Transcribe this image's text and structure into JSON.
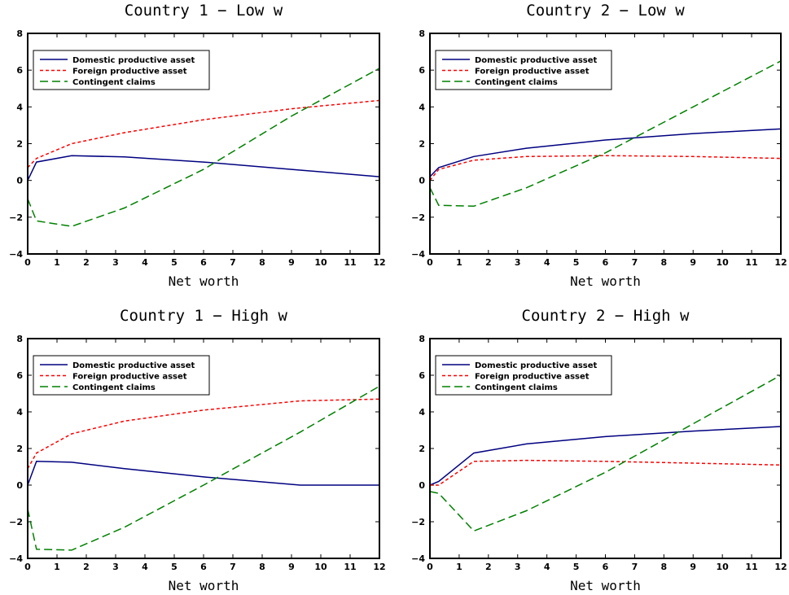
{
  "chart_data": [
    {
      "type": "line",
      "title": "Country 1 − Low w",
      "xlabel": "Net worth",
      "ylabel": "",
      "xlim": [
        0,
        12
      ],
      "ylim": [
        -4,
        8
      ],
      "xticks": [
        "0",
        "1",
        "2",
        "3",
        "4",
        "5",
        "6",
        "7",
        "8",
        "9",
        "10",
        "11",
        "12"
      ],
      "yticks": [
        "−4",
        "−2",
        "0",
        "2",
        "4",
        "6",
        "8"
      ],
      "legend_position": "top-left",
      "series": [
        {
          "name": "Domestic productive asset",
          "color": "#000080",
          "dash": "solid",
          "x": [
            0,
            0.3,
            1.5,
            3.3,
            6,
            9,
            12
          ],
          "y": [
            0,
            1.0,
            1.35,
            1.28,
            1.0,
            0.6,
            0.2
          ]
        },
        {
          "name": "Foreign productive asset",
          "color": "#ff0000",
          "dash": "short",
          "x": [
            0,
            0.3,
            1.5,
            3.3,
            6,
            9,
            12
          ],
          "y": [
            0.7,
            1.2,
            2.0,
            2.6,
            3.3,
            3.9,
            4.35
          ]
        },
        {
          "name": "Contingent claims",
          "color": "#008000",
          "dash": "long",
          "x": [
            0,
            0.3,
            1.5,
            3.3,
            6,
            9,
            12
          ],
          "y": [
            -1.0,
            -2.2,
            -2.5,
            -1.5,
            0.6,
            3.5,
            6.1
          ]
        }
      ]
    },
    {
      "type": "line",
      "title": "Country 2 − Low w",
      "xlabel": "Net worth",
      "ylabel": "",
      "xlim": [
        0,
        12
      ],
      "ylim": [
        -4,
        8
      ],
      "xticks": [
        "0",
        "1",
        "2",
        "3",
        "4",
        "5",
        "6",
        "7",
        "8",
        "9",
        "10",
        "11",
        "12"
      ],
      "yticks": [
        "−4",
        "−2",
        "0",
        "2",
        "4",
        "6",
        "8"
      ],
      "legend_position": "top-left",
      "series": [
        {
          "name": "Domestic productive asset",
          "color": "#000080",
          "dash": "solid",
          "x": [
            0,
            0.3,
            1.5,
            3.3,
            6,
            9,
            12
          ],
          "y": [
            0.2,
            0.7,
            1.3,
            1.75,
            2.2,
            2.55,
            2.8
          ]
        },
        {
          "name": "Foreign productive asset",
          "color": "#ff0000",
          "dash": "short",
          "x": [
            0,
            0.3,
            1.5,
            3.3,
            6,
            9,
            12
          ],
          "y": [
            0,
            0.6,
            1.1,
            1.3,
            1.35,
            1.3,
            1.2
          ]
        },
        {
          "name": "Contingent claims",
          "color": "#008000",
          "dash": "long",
          "x": [
            0,
            0.3,
            1.5,
            3.3,
            6,
            9,
            12
          ],
          "y": [
            -0.4,
            -1.35,
            -1.4,
            -0.4,
            1.5,
            4.0,
            6.5
          ]
        }
      ]
    },
    {
      "type": "line",
      "title": "Country 1 − High w",
      "xlabel": "Net worth",
      "ylabel": "",
      "xlim": [
        0,
        12
      ],
      "ylim": [
        -4,
        8
      ],
      "xticks": [
        "0",
        "1",
        "2",
        "3",
        "4",
        "5",
        "6",
        "7",
        "8",
        "9",
        "10",
        "11",
        "12"
      ],
      "yticks": [
        "−4",
        "−2",
        "0",
        "2",
        "4",
        "6",
        "8"
      ],
      "legend_position": "top-left",
      "series": [
        {
          "name": "Domestic productive asset",
          "color": "#000080",
          "dash": "solid",
          "x": [
            0,
            0.3,
            1.5,
            3.3,
            6,
            9.3,
            12
          ],
          "y": [
            0,
            1.3,
            1.25,
            0.9,
            0.45,
            0,
            0
          ]
        },
        {
          "name": "Foreign productive asset",
          "color": "#ff0000",
          "dash": "short",
          "x": [
            0,
            0.3,
            1.5,
            3.3,
            6,
            9.3,
            12
          ],
          "y": [
            0.9,
            1.75,
            2.8,
            3.5,
            4.1,
            4.6,
            4.7
          ]
        },
        {
          "name": "Contingent claims",
          "color": "#008000",
          "dash": "long",
          "x": [
            0,
            0.3,
            1.5,
            3.3,
            6,
            9.3,
            12
          ],
          "y": [
            -1.3,
            -3.5,
            -3.55,
            -2.3,
            0,
            2.9,
            5.4
          ]
        }
      ]
    },
    {
      "type": "line",
      "title": "Country 2 − High w",
      "xlabel": "Net worth",
      "ylabel": "",
      "xlim": [
        0,
        12
      ],
      "ylim": [
        -4,
        8
      ],
      "xticks": [
        "0",
        "1",
        "2",
        "3",
        "4",
        "5",
        "6",
        "7",
        "8",
        "9",
        "10",
        "11",
        "12"
      ],
      "yticks": [
        "−4",
        "−2",
        "0",
        "2",
        "4",
        "6",
        "8"
      ],
      "legend_position": "top-left",
      "series": [
        {
          "name": "Domestic productive asset",
          "color": "#000080",
          "dash": "solid",
          "x": [
            0,
            0.3,
            1.5,
            3.3,
            6,
            9,
            12
          ],
          "y": [
            0,
            0.2,
            1.75,
            2.25,
            2.65,
            2.95,
            3.2
          ]
        },
        {
          "name": "Foreign productive asset",
          "color": "#ff0000",
          "dash": "short",
          "x": [
            0,
            0.3,
            1.5,
            3.3,
            6,
            9,
            12
          ],
          "y": [
            0,
            0,
            1.3,
            1.35,
            1.3,
            1.2,
            1.1
          ]
        },
        {
          "name": "Contingent claims",
          "color": "#008000",
          "dash": "long",
          "x": [
            0,
            0.3,
            1.5,
            3.3,
            6,
            9,
            12
          ],
          "y": [
            -0.35,
            -0.45,
            -2.5,
            -1.4,
            0.7,
            3.35,
            6.0
          ]
        }
      ]
    }
  ]
}
